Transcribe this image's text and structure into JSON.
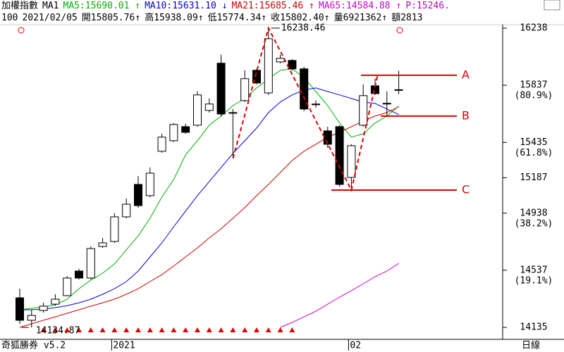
{
  "header": {
    "name": "加權指數",
    "mode": "MA1",
    "ma_labels": [
      "MA5:15690.01 ↑",
      "MA10:15631.10 ↓",
      "MA21:15685.46 ↑",
      "MA65:14584.88 ↑"
    ],
    "p_label": "P:15246.",
    "info": [
      "100",
      "2021/02/05",
      "開15805.76↑",
      "高15938.09↑",
      "低15774.34↑",
      "收15802.40↑",
      "量6921362↑",
      "額2813"
    ]
  },
  "footer": {
    "software": "奇狐勝券 v5.2",
    "period": "日線"
  },
  "chart_data": {
    "type": "candlestick",
    "categories": [
      null,
      null,
      null,
      null,
      null,
      null,
      null,
      null,
      "2021",
      null,
      null,
      null,
      null,
      null,
      null,
      null,
      null,
      null,
      null,
      null,
      null,
      null,
      null,
      null,
      null,
      null,
      null,
      null,
      "02",
      null,
      null,
      null,
      null
    ],
    "open": [
      14343,
      14185,
      14254,
      14298,
      14358,
      14531,
      14482,
      14704,
      14739,
      14912,
      15140,
      15061,
      15373,
      15447,
      15546,
      15556,
      15660,
      15992,
      15645,
      15729,
      15942,
      15783,
      16001,
      16011,
      15952,
      15700,
      15516,
      15546,
      15189,
      15556,
      15833,
      15710,
      15805.76
    ],
    "high": [
      14407,
      14259,
      14308,
      14368,
      14496,
      14546,
      14704,
      14764,
      14937,
      15041,
      15199,
      15259,
      15496,
      15571,
      15566,
      15794,
      15744,
      16051,
      15670,
      15942,
      15952,
      16238.46,
      16051,
      16021,
      15967,
      15729,
      15546,
      15556,
      15422,
      15843,
      15883,
      15794,
      15938.09
    ],
    "low": [
      14160,
      14134.87,
      14239,
      14288,
      14353,
      14472,
      14472,
      14694,
      14729,
      14902,
      14976,
      15051,
      15363,
      15437,
      15496,
      15546,
      15645,
      15620,
      15323,
      15719,
      15843,
      15769,
      15991,
      15942,
      15655,
      15680,
      15397,
      15125,
      15100,
      15546,
      15769,
      15620,
      15774.34
    ],
    "close": [
      14185,
      14219,
      14284,
      14333,
      14482,
      14482,
      14689,
      14729,
      14912,
      15001,
      14991,
      15219,
      15472,
      15561,
      15506,
      15769,
      15705,
      15635,
      15640,
      15883,
      15853,
      16164,
      16026,
      15952,
      15670,
      15705,
      15422,
      15140,
      15412,
      15764,
      15778,
      15710,
      15802.4
    ],
    "series": [
      {
        "name": "MA5",
        "color": "#00b000",
        "values": [
          14259,
          14269,
          14279,
          14293,
          14333,
          14407,
          14467,
          14516,
          14581,
          14680,
          14779,
          14902,
          15051,
          15175,
          15348,
          15447,
          15556,
          15620,
          15694,
          15744,
          15818,
          15882,
          15942,
          15952,
          15892,
          15793,
          15694,
          15571,
          15472,
          15496,
          15571,
          15620,
          15690.01
        ]
      },
      {
        "name": "MA10",
        "color": "#0000e0",
        "values": [
          14259,
          14259,
          14264,
          14274,
          14288,
          14308,
          14333,
          14368,
          14407,
          14457,
          14531,
          14630,
          14729,
          14843,
          14952,
          15061,
          15160,
          15259,
          15358,
          15447,
          15536,
          15645,
          15719,
          15769,
          15803,
          15818,
          15793,
          15769,
          15744,
          15719,
          15709,
          15670,
          15631.1
        ]
      },
      {
        "name": "MA21",
        "color": "#d00000",
        "values": [
          14135,
          14160,
          14185,
          14209,
          14234,
          14259,
          14284,
          14308,
          14333,
          14368,
          14407,
          14457,
          14506,
          14566,
          14630,
          14694,
          14764,
          14828,
          14902,
          14977,
          15061,
          15140,
          15224,
          15308,
          15373,
          15422,
          15472,
          15506,
          15546,
          15585,
          15620,
          15645,
          15685.46
        ]
      },
      {
        "name": "MA65",
        "color": "#d000d0",
        "values": [
          null,
          null,
          null,
          null,
          null,
          null,
          null,
          null,
          null,
          null,
          null,
          null,
          null,
          null,
          null,
          null,
          null,
          null,
          null,
          null,
          null,
          null,
          14135,
          14170,
          14209,
          14249,
          14298,
          14348,
          14392,
          14442,
          14491,
          14531,
          14584.88
        ]
      }
    ],
    "high_label": "16238.46",
    "low_label": "14134.87",
    "pattern": {
      "x": [
        18,
        21,
        28,
        30.2
      ],
      "values": [
        15323,
        16238.46,
        15100,
        15902
      ],
      "color": "#e00000"
    },
    "levels": [
      {
        "name": "A",
        "value": 15907
      },
      {
        "name": "B",
        "value": 15620
      },
      {
        "name": "C",
        "value": 15100
      }
    ],
    "level_color": "#e00000",
    "ylim": [
      14061,
      16347
    ],
    "yticks": [
      14135,
      14537,
      14938,
      15187,
      15435,
      15837,
      16238
    ],
    "ratio_labels": [
      {
        "value": 14537,
        "label": "(19.1%)"
      },
      {
        "value": 14938,
        "label": "(38.2%)"
      },
      {
        "value": 15435,
        "label": "(61.8%)"
      },
      {
        "value": 15837,
        "label": "(80.9%)"
      }
    ]
  }
}
